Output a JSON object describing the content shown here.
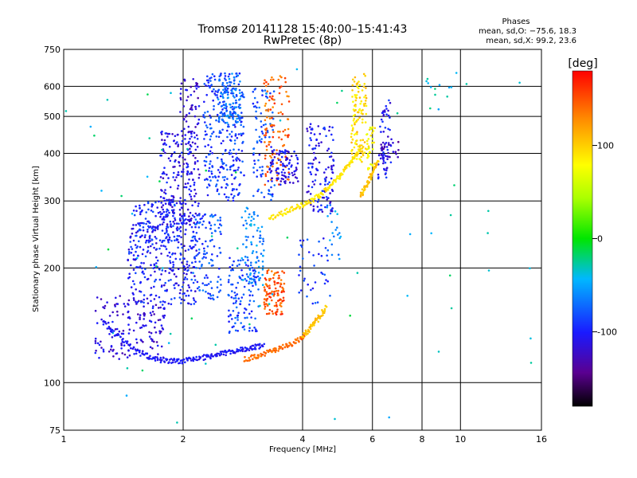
{
  "chart_data": {
    "type": "scatter",
    "title": "Tromsø 20141128 15:40:00–15:41:43",
    "subtitle": "RwPretec (8p)",
    "xlabel": "Frequency [MHz]",
    "ylabel": "Stationary phase Virtual Height [km]",
    "xscale": "log",
    "yscale": "log",
    "xlim": [
      1,
      16
    ],
    "ylim": [
      75,
      750
    ],
    "xticks": [
      1,
      2,
      4,
      6,
      8,
      10,
      16
    ],
    "xtick_labels": [
      "1",
      "2",
      "4",
      "6",
      "8",
      "10",
      "16"
    ],
    "yticks": [
      75,
      100,
      200,
      300,
      400,
      500,
      600,
      750
    ],
    "ytick_labels": [
      "75",
      "100",
      "200",
      "300",
      "400",
      "500",
      "600",
      "750"
    ],
    "grid": true,
    "phase_info": {
      "heading": "Phases",
      "line1": "mean, sd,O: −75.6, 18.3",
      "line2": "mean, sd,X:  99.2, 23.6"
    },
    "colorbar": {
      "label": "[deg]",
      "ticks": [
        100,
        0,
        -100
      ],
      "tick_labels": [
        "100",
        "0",
        "-100"
      ],
      "range": [
        -180,
        180
      ]
    },
    "traces": [
      {
        "x": [
          1.25,
          1.4,
          1.55,
          1.7,
          1.85,
          2.0,
          2.2,
          2.4,
          2.6,
          2.8,
          3.0,
          3.2
        ],
        "y": [
          145,
          130,
          120,
          115,
          114,
          114,
          116,
          118,
          120,
          122,
          124,
          125
        ],
        "phase": -105
      },
      {
        "x": [
          2.85,
          3.1,
          3.35,
          3.6,
          3.85,
          4.1
        ],
        "y": [
          115,
          118,
          121,
          124,
          128,
          134
        ],
        "phase": 140
      },
      {
        "x": [
          4.0,
          4.2,
          4.4,
          4.6
        ],
        "y": [
          132,
          140,
          148,
          158
        ],
        "phase": 105
      },
      {
        "x": [
          3.3,
          3.6,
          3.9,
          4.2,
          4.5,
          4.8,
          5.1,
          5.4,
          5.7
        ],
        "y": [
          270,
          280,
          290,
          300,
          315,
          335,
          360,
          390,
          420
        ],
        "phase": 90
      },
      {
        "x": [
          5.6,
          5.8,
          6.0,
          6.2
        ],
        "y": [
          310,
          330,
          355,
          380
        ],
        "phase": 105
      }
    ],
    "clusters": [
      {
        "x_range": [
          1.2,
          1.8
        ],
        "y_range": [
          115,
          170
        ],
        "n": 160,
        "phase": -115
      },
      {
        "x_range": [
          1.45,
          2.2
        ],
        "y_range": [
          160,
          270
        ],
        "n": 300,
        "phase": -100
      },
      {
        "x_range": [
          1.5,
          2.0
        ],
        "y_range": [
          235,
          300
        ],
        "n": 120,
        "phase": -95
      },
      {
        "x_range": [
          1.75,
          2.2
        ],
        "y_range": [
          260,
          460
        ],
        "n": 220,
        "phase": -110
      },
      {
        "x_range": [
          1.95,
          2.2
        ],
        "y_range": [
          450,
          630
        ],
        "n": 50,
        "phase": -115
      },
      {
        "x_range": [
          2.1,
          2.5
        ],
        "y_range": [
          165,
          280
        ],
        "n": 110,
        "phase": -80
      },
      {
        "x_range": [
          2.25,
          2.85
        ],
        "y_range": [
          300,
          650
        ],
        "n": 260,
        "phase": -90
      },
      {
        "x_range": [
          2.45,
          2.8
        ],
        "y_range": [
          480,
          650
        ],
        "n": 120,
        "phase": -70
      },
      {
        "x_range": [
          2.6,
          3.1
        ],
        "y_range": [
          135,
          215
        ],
        "n": 120,
        "phase": -85
      },
      {
        "x_range": [
          2.8,
          3.2
        ],
        "y_range": [
          180,
          290
        ],
        "n": 80,
        "phase": -60
      },
      {
        "x_range": [
          3.0,
          3.4
        ],
        "y_range": [
          300,
          600
        ],
        "n": 90,
        "phase": -85
      },
      {
        "x_range": [
          3.2,
          3.6
        ],
        "y_range": [
          150,
          200
        ],
        "n": 110,
        "phase": 150
      },
      {
        "x_range": [
          3.2,
          3.7
        ],
        "y_range": [
          330,
          640
        ],
        "n": 110,
        "phase": 145
      },
      {
        "x_range": [
          3.3,
          3.9
        ],
        "y_range": [
          330,
          410
        ],
        "n": 90,
        "phase": -110
      },
      {
        "x_range": [
          3.9,
          4.7
        ],
        "y_range": [
          160,
          240
        ],
        "n": 40,
        "phase": -90
      },
      {
        "x_range": [
          4.1,
          4.8
        ],
        "y_range": [
          280,
          480
        ],
        "n": 120,
        "phase": -105
      },
      {
        "x_range": [
          4.6,
          5.0
        ],
        "y_range": [
          210,
          300
        ],
        "n": 20,
        "phase": -60
      },
      {
        "x_range": [
          5.3,
          5.8
        ],
        "y_range": [
          380,
          650
        ],
        "n": 110,
        "phase": 95
      },
      {
        "x_range": [
          5.8,
          6.1
        ],
        "y_range": [
          360,
          470
        ],
        "n": 40,
        "phase": 80
      },
      {
        "x_range": [
          6.2,
          6.7
        ],
        "y_range": [
          340,
          560
        ],
        "n": 60,
        "phase": -105
      },
      {
        "x_range": [
          6.3,
          7.0
        ],
        "y_range": [
          390,
          430
        ],
        "n": 25,
        "phase": -125
      },
      {
        "x_range": [
          8.0,
          9.5
        ],
        "y_range": [
          520,
          620
        ],
        "n": 10,
        "phase": -40
      },
      {
        "x_range": [
          1.0,
          16.0
        ],
        "y_range": [
          78,
          700
        ],
        "n": 70,
        "phase": -30
      }
    ]
  }
}
